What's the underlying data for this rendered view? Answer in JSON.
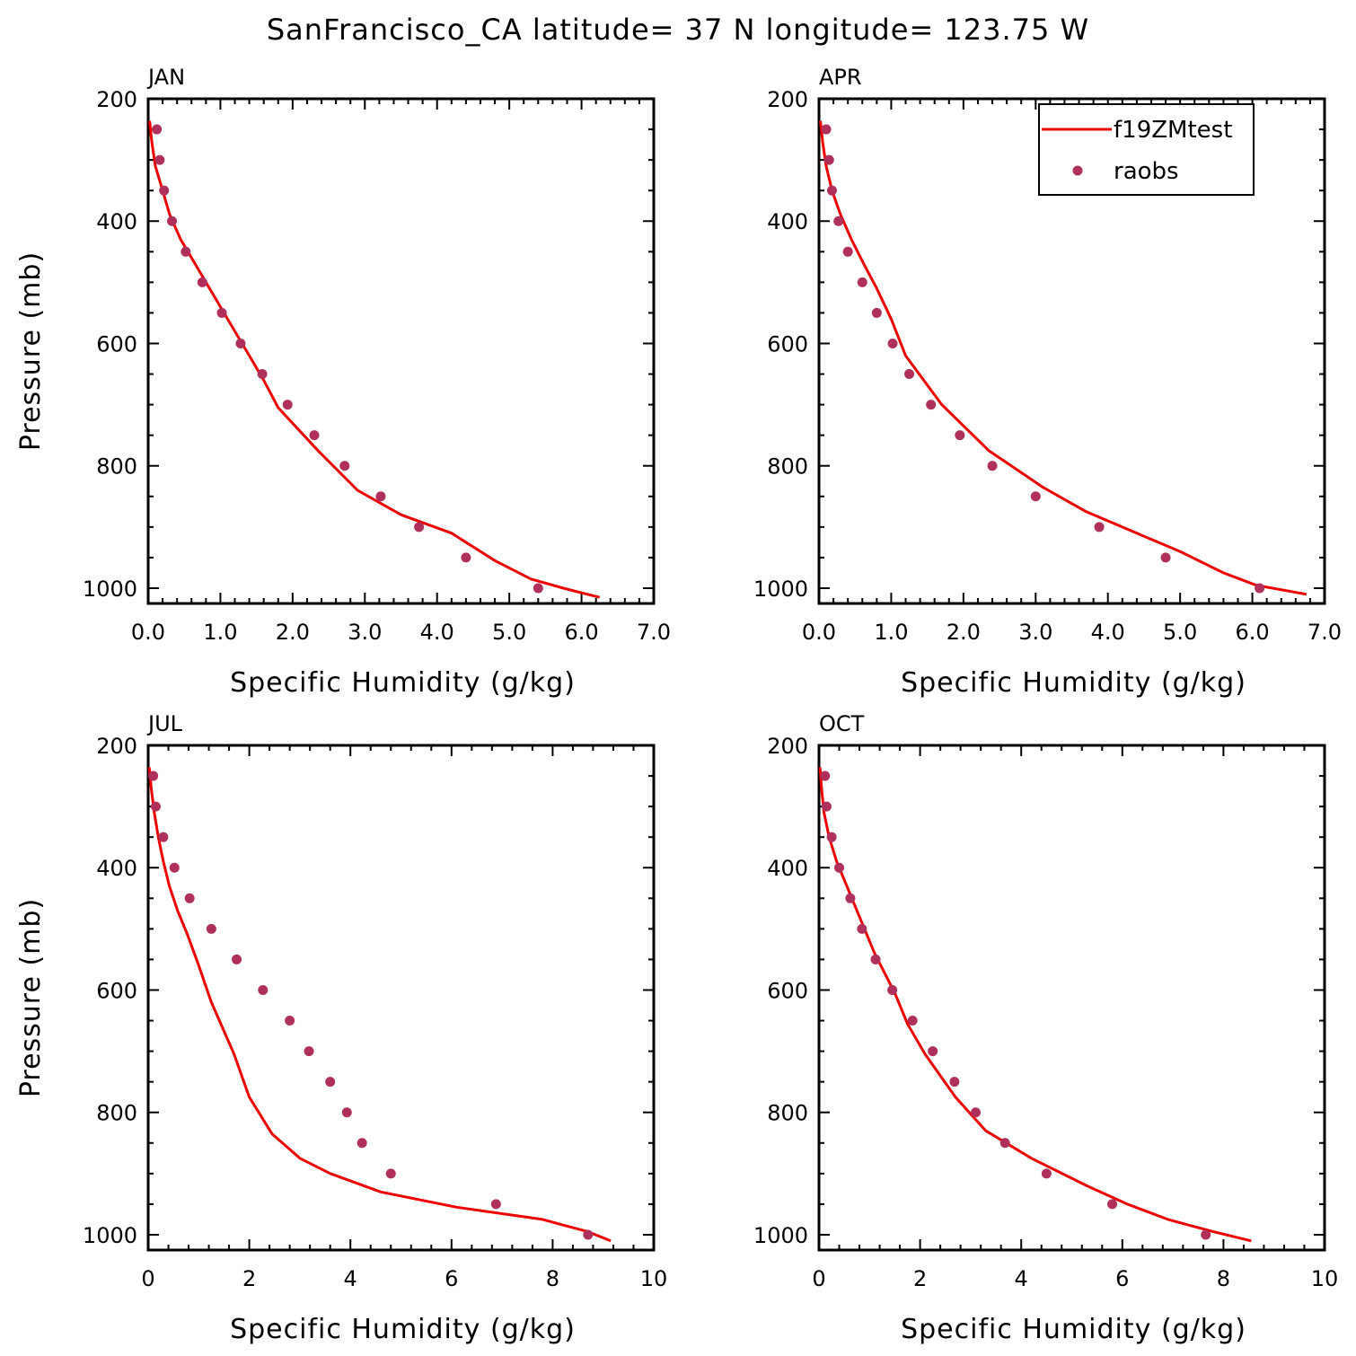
{
  "title": "SanFrancisco_CA  latitude= 37 N longitude= 123.75 W",
  "colors": {
    "model": "#ee0000",
    "obs": "#b0305c",
    "axis": "#000000"
  },
  "legend": {
    "placement": "top-right of APR panel",
    "model_label": "f19ZMtest",
    "obs_label": "raobs"
  },
  "chart_data": [
    {
      "type": "line",
      "panel": "JAN",
      "xlabel": "Specific Humidity (g/kg)",
      "ylabel": "Pressure (mb)",
      "xlim": [
        0,
        7
      ],
      "ylim": [
        1025,
        200
      ],
      "x_ticks": [
        0,
        1,
        2,
        3,
        4,
        5,
        6,
        7
      ],
      "x_tick_labels": [
        "0.0",
        "1.0",
        "2.0",
        "3.0",
        "4.0",
        "5.0",
        "6.0",
        "7.0"
      ],
      "y_ticks": [
        200,
        400,
        600,
        800,
        1000
      ],
      "series": [
        {
          "name": "f19ZMtest",
          "kind": "line",
          "x": [
            0.02,
            0.05,
            0.1,
            0.2,
            0.3,
            0.45,
            0.65,
            0.85,
            1.05,
            1.3,
            1.6,
            1.8,
            2.35,
            2.9,
            3.5,
            4.2,
            4.8,
            5.3,
            5.75,
            6.25
          ],
          "y": [
            236,
            270,
            310,
            350,
            390,
            430,
            470,
            510,
            550,
            600,
            660,
            705,
            775,
            840,
            880,
            910,
            955,
            985,
            1000,
            1015
          ]
        },
        {
          "name": "raobs",
          "kind": "scatter",
          "x": [
            0.12,
            0.16,
            0.22,
            0.33,
            0.52,
            0.75,
            1.02,
            1.28,
            1.58,
            1.93,
            2.3,
            2.72,
            3.22,
            3.75,
            4.4,
            5.4
          ],
          "y": [
            250,
            300,
            350,
            400,
            450,
            500,
            550,
            600,
            650,
            700,
            750,
            800,
            850,
            900,
            950,
            1000
          ]
        }
      ]
    },
    {
      "type": "line",
      "panel": "APR",
      "xlabel": "Specific Humidity (g/kg)",
      "ylabel": "",
      "xlim": [
        0,
        7
      ],
      "ylim": [
        1025,
        200
      ],
      "x_ticks": [
        0,
        1,
        2,
        3,
        4,
        5,
        6,
        7
      ],
      "x_tick_labels": [
        "0.0",
        "1.0",
        "2.0",
        "3.0",
        "4.0",
        "5.0",
        "6.0",
        "7.0"
      ],
      "y_ticks": [
        200,
        400,
        600,
        800,
        1000
      ],
      "series": [
        {
          "name": "f19ZMtest",
          "kind": "line",
          "x": [
            0.02,
            0.05,
            0.1,
            0.18,
            0.3,
            0.45,
            0.62,
            0.8,
            1.0,
            1.2,
            1.7,
            2.35,
            3.1,
            3.7,
            4.3,
            5.0,
            5.6,
            6.05,
            6.75
          ],
          "y": [
            236,
            270,
            310,
            350,
            390,
            430,
            470,
            510,
            560,
            620,
            700,
            775,
            835,
            875,
            905,
            940,
            975,
            995,
            1010
          ]
        },
        {
          "name": "raobs",
          "kind": "scatter",
          "x": [
            0.1,
            0.14,
            0.18,
            0.27,
            0.4,
            0.6,
            0.8,
            1.02,
            1.25,
            1.55,
            1.95,
            2.4,
            3.0,
            3.88,
            4.8,
            6.1
          ],
          "y": [
            250,
            300,
            350,
            400,
            450,
            500,
            550,
            600,
            650,
            700,
            750,
            800,
            850,
            900,
            950,
            1000
          ]
        }
      ]
    },
    {
      "type": "line",
      "panel": "JUL",
      "xlabel": "Specific Humidity (g/kg)",
      "ylabel": "Pressure (mb)",
      "xlim": [
        0,
        10
      ],
      "ylim": [
        1025,
        200
      ],
      "x_ticks": [
        0,
        2,
        4,
        6,
        8,
        10
      ],
      "x_tick_labels": [
        "0",
        "2",
        "4",
        "6",
        "8",
        "10"
      ],
      "y_ticks": [
        200,
        400,
        600,
        800,
        1000
      ],
      "series": [
        {
          "name": "f19ZMtest",
          "kind": "line",
          "x": [
            0.02,
            0.06,
            0.12,
            0.2,
            0.3,
            0.42,
            0.58,
            0.78,
            1.0,
            1.25,
            1.7,
            2.0,
            2.45,
            3.0,
            3.6,
            4.6,
            6.1,
            7.8,
            8.7,
            9.15
          ],
          "y": [
            236,
            270,
            310,
            350,
            390,
            430,
            470,
            510,
            560,
            620,
            705,
            775,
            835,
            875,
            900,
            930,
            955,
            975,
            995,
            1010
          ]
        },
        {
          "name": "raobs",
          "kind": "scatter",
          "x": [
            0.1,
            0.15,
            0.3,
            0.52,
            0.82,
            1.25,
            1.75,
            2.27,
            2.8,
            3.18,
            3.6,
            3.93,
            4.23,
            4.8,
            6.88,
            8.7
          ],
          "y": [
            250,
            300,
            350,
            400,
            450,
            500,
            550,
            600,
            650,
            700,
            750,
            800,
            850,
            900,
            950,
            1000
          ]
        }
      ]
    },
    {
      "type": "line",
      "panel": "OCT",
      "xlabel": "Specific Humidity (g/kg)",
      "ylabel": "",
      "xlim": [
        0,
        10
      ],
      "ylim": [
        1025,
        200
      ],
      "x_ticks": [
        0,
        2,
        4,
        6,
        8,
        10
      ],
      "x_tick_labels": [
        "0",
        "2",
        "4",
        "6",
        "8",
        "10"
      ],
      "y_ticks": [
        200,
        400,
        600,
        800,
        1000
      ],
      "series": [
        {
          "name": "f19ZMtest",
          "kind": "line",
          "x": [
            0.02,
            0.05,
            0.1,
            0.2,
            0.35,
            0.55,
            0.8,
            1.1,
            1.5,
            1.75,
            2.1,
            2.7,
            3.3,
            4.2,
            5.3,
            6.1,
            6.9,
            7.8,
            8.55
          ],
          "y": [
            236,
            270,
            310,
            350,
            390,
            430,
            480,
            540,
            605,
            655,
            705,
            775,
            830,
            875,
            920,
            950,
            975,
            995,
            1010
          ]
        },
        {
          "name": "raobs",
          "kind": "scatter",
          "x": [
            0.12,
            0.15,
            0.25,
            0.4,
            0.62,
            0.85,
            1.12,
            1.45,
            1.85,
            2.25,
            2.68,
            3.1,
            3.68,
            4.5,
            5.8,
            7.65
          ],
          "y": [
            250,
            300,
            350,
            400,
            450,
            500,
            550,
            600,
            650,
            700,
            750,
            800,
            850,
            900,
            950,
            1000
          ]
        }
      ]
    }
  ]
}
